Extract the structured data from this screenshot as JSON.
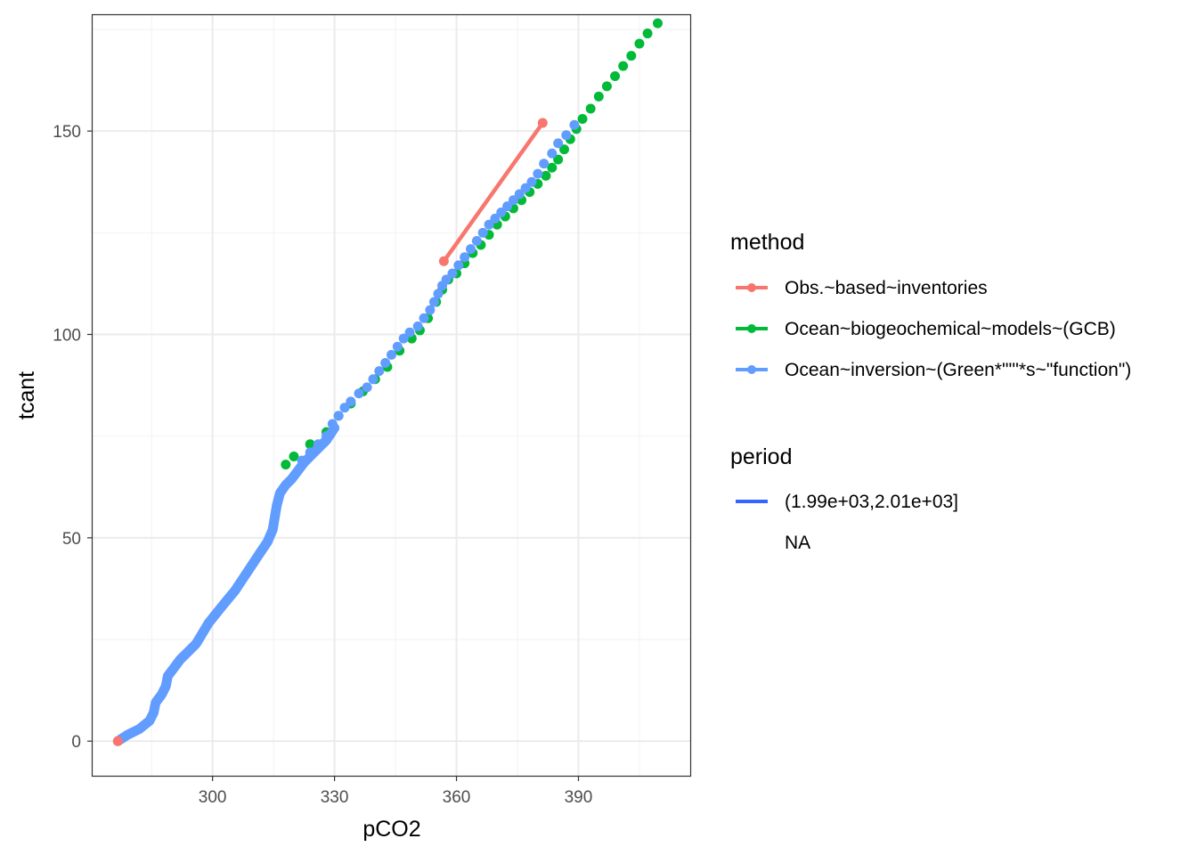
{
  "chart_data": {
    "type": "scatter",
    "xlabel": "pCO2",
    "ylabel": "tcant",
    "xlim": [
      270.5,
      417.5
    ],
    "ylim": [
      -8.5,
      178.5
    ],
    "x_ticks": [
      300,
      330,
      360,
      390
    ],
    "y_ticks": [
      0,
      50,
      100,
      150
    ],
    "grid": true,
    "legend_position": "right",
    "legend": {
      "method_title": "method",
      "method_entries": [
        {
          "label": "Obs.~based~inventories",
          "color": "#F8766D"
        },
        {
          "label": "Ocean~biogeochemical~models~(GCB)",
          "color": "#00BA38"
        },
        {
          "label": "Ocean~inversion~(Green*\"'\"*s~\"function\")",
          "color": "#619CFF"
        }
      ],
      "period_title": "period",
      "period_entries": [
        {
          "label": "(1.99e+03,2.01e+03]",
          "color": "#3366FF"
        },
        {
          "label": "NA",
          "color": null
        }
      ]
    },
    "series": [
      {
        "name": "Obs.~based~inventories",
        "color": "#F8766D",
        "points": [
          [
            276.7,
            0
          ],
          [
            356.9,
            118
          ],
          [
            381.2,
            152
          ]
        ],
        "line_segment": [
          [
            356.9,
            118
          ],
          [
            381.2,
            152
          ]
        ]
      },
      {
        "name": "Ocean~biogeochemical~models~(GCB)",
        "color": "#00BA38",
        "points": [
          [
            318,
            68
          ],
          [
            320,
            70
          ],
          [
            324,
            73
          ],
          [
            328,
            76
          ],
          [
            331,
            80
          ],
          [
            334,
            83
          ],
          [
            337,
            86
          ],
          [
            340,
            89
          ],
          [
            343,
            92
          ],
          [
            346,
            96
          ],
          [
            349,
            99
          ],
          [
            351,
            101
          ],
          [
            353,
            104
          ],
          [
            355,
            108
          ],
          [
            356.5,
            111
          ],
          [
            358,
            113.5
          ],
          [
            360,
            115
          ],
          [
            362,
            117.5
          ],
          [
            364,
            120
          ],
          [
            366,
            122
          ],
          [
            368,
            124.5
          ],
          [
            370,
            127
          ],
          [
            372,
            129
          ],
          [
            374,
            131
          ],
          [
            376,
            133
          ],
          [
            378,
            135
          ],
          [
            380,
            137
          ],
          [
            382,
            139
          ],
          [
            383.5,
            141
          ],
          [
            385,
            143
          ],
          [
            386.5,
            145.5
          ],
          [
            388,
            148
          ],
          [
            389.5,
            150.5
          ],
          [
            391,
            153
          ],
          [
            393,
            155.5
          ],
          [
            395,
            158.5
          ],
          [
            397,
            161
          ],
          [
            399,
            163.5
          ],
          [
            401,
            166
          ],
          [
            403,
            168.5
          ],
          [
            405,
            171.5
          ],
          [
            407,
            174
          ],
          [
            409.5,
            176.5
          ]
        ]
      },
      {
        "name": "Ocean~inversion~(Green*\"'\"*s~\"function\")",
        "color": "#619CFF",
        "curve": [
          [
            276.7,
            0
          ],
          [
            279,
            1.5
          ],
          [
            282,
            3
          ],
          [
            284.5,
            5
          ],
          [
            285.5,
            7
          ],
          [
            286,
            9.5
          ],
          [
            287.5,
            11.5
          ],
          [
            288.5,
            13.5
          ],
          [
            289,
            16
          ],
          [
            290.5,
            18
          ],
          [
            292,
            20
          ],
          [
            294,
            22
          ],
          [
            296,
            24
          ],
          [
            297.5,
            26.5
          ],
          [
            299,
            29
          ],
          [
            301,
            31.5
          ],
          [
            303,
            34
          ],
          [
            305.5,
            37
          ],
          [
            307.5,
            40
          ],
          [
            309.5,
            43
          ],
          [
            311.5,
            46
          ],
          [
            313.5,
            49
          ],
          [
            314.8,
            52
          ],
          [
            315.3,
            55
          ],
          [
            315.8,
            58
          ],
          [
            316.6,
            61
          ],
          [
            318,
            63
          ],
          [
            319.5,
            64.5
          ],
          [
            321,
            66.5
          ],
          [
            322.5,
            68.5
          ],
          [
            325,
            71
          ],
          [
            328,
            74
          ],
          [
            330,
            77
          ]
        ],
        "points": [
          [
            322,
            69
          ],
          [
            324,
            71
          ],
          [
            326,
            73
          ],
          [
            328,
            75
          ],
          [
            329.5,
            78
          ],
          [
            331,
            80
          ],
          [
            332.5,
            82
          ],
          [
            334,
            83.5
          ],
          [
            336,
            85.5
          ],
          [
            338,
            87
          ],
          [
            339.5,
            89
          ],
          [
            341,
            91
          ],
          [
            342.5,
            93
          ],
          [
            344,
            95
          ],
          [
            345.5,
            97
          ],
          [
            347,
            99
          ],
          [
            348.5,
            100.5
          ],
          [
            350.5,
            102
          ],
          [
            352,
            104
          ],
          [
            353.5,
            106
          ],
          [
            354.5,
            108
          ],
          [
            355.5,
            110
          ],
          [
            356.5,
            112
          ],
          [
            357.5,
            113.5
          ],
          [
            359,
            115
          ],
          [
            360.5,
            117
          ],
          [
            362,
            119
          ],
          [
            363.5,
            121
          ],
          [
            365,
            123
          ],
          [
            366.5,
            125
          ],
          [
            368,
            127
          ],
          [
            369.5,
            128.5
          ],
          [
            371,
            130
          ],
          [
            372.5,
            131.5
          ],
          [
            374,
            133
          ],
          [
            375.5,
            134.5
          ],
          [
            377,
            136
          ],
          [
            378.5,
            137.5
          ],
          [
            380,
            139.5
          ],
          [
            381.5,
            142
          ],
          [
            383.5,
            144.5
          ],
          [
            385,
            147
          ],
          [
            387,
            149
          ],
          [
            389,
            151.5
          ]
        ]
      }
    ]
  }
}
